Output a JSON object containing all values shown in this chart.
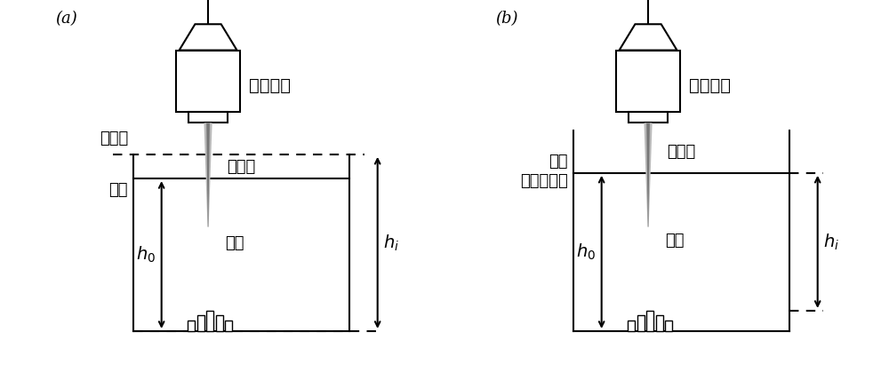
{
  "bg_color": "#ffffff",
  "label_a": "(a)",
  "label_b": "(b)",
  "text_optical": "光学探头",
  "text_bath": "电镇池",
  "text_plated": "镖件",
  "text_ref_a": "参考面",
  "text_liquid_a": "液面",
  "text_liquid_b": "液面\n（参考面）",
  "text_hi": "$h_i$",
  "text_h0": "$h_0$",
  "line_color": "#000000",
  "gray_color": "#999999",
  "font_size": 13,
  "font_size_label": 13
}
